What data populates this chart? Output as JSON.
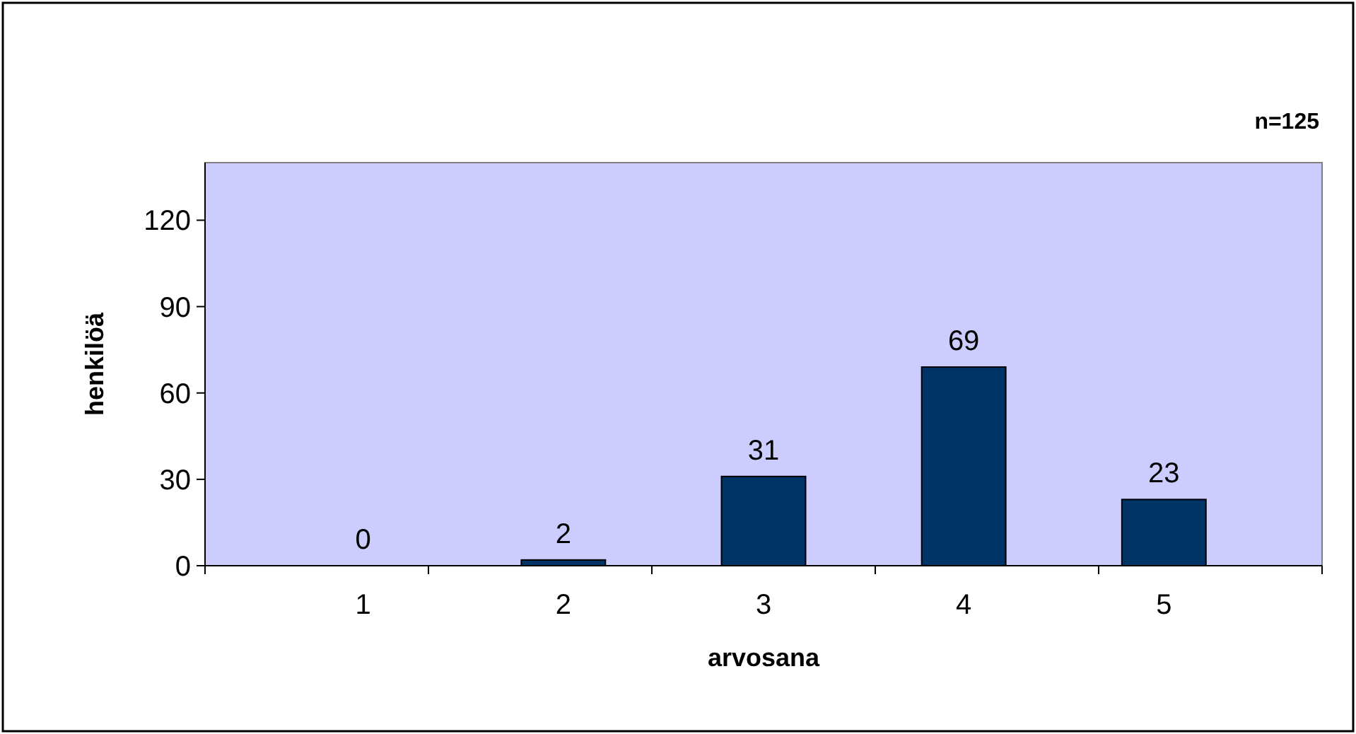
{
  "chart_data": {
    "type": "bar",
    "xlabel": "arvosana",
    "ylabel": "henkilöä",
    "categories": [
      "1",
      "2",
      "3",
      "4",
      "5"
    ],
    "values": [
      0,
      2,
      31,
      69,
      23
    ],
    "color": "#003366",
    "ylim": [
      0,
      140
    ],
    "yticks": [
      0,
      30,
      60,
      90,
      120
    ],
    "grid": false,
    "data_labels": true,
    "annotations": [
      "n=125"
    ]
  }
}
